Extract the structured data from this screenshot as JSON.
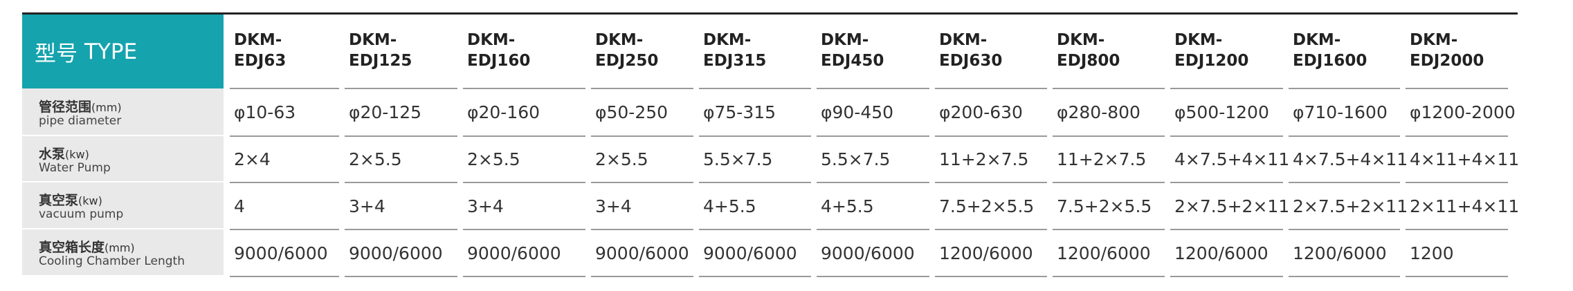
{
  "header": {
    "label_cn": "型号",
    "label_en": "TYPE",
    "models": [
      "DKM-EDJ63",
      "DKM-EDJ125",
      "DKM-EDJ160",
      "DKM-EDJ250",
      "DKM-EDJ315",
      "DKM-EDJ450",
      "DKM-EDJ630",
      "DKM-EDJ800",
      "DKM-EDJ1200",
      "DKM-EDJ1600",
      "DKM-EDJ2000"
    ]
  },
  "rows": [
    {
      "label_cn": "管径范围",
      "unit": "(mm)",
      "label_en": "pipe diameter",
      "values": [
        "φ10-63",
        "φ20-125",
        "φ20-160",
        "φ50-250",
        "φ75-315",
        "φ90-450",
        "φ200-630",
        "φ280-800",
        "φ500-1200",
        "φ710-1600",
        "φ1200-2000"
      ]
    },
    {
      "label_cn": "水泵",
      "unit": "(kw)",
      "label_en": "Water Pump",
      "values": [
        "2×4",
        "2×5.5",
        "2×5.5",
        "2×5.5",
        "5.5×7.5",
        "5.5×7.5",
        "11+2×7.5",
        "11+2×7.5",
        "4×7.5+4×11",
        "4×7.5+4×11",
        "4×11+4×11"
      ]
    },
    {
      "label_cn": "真空泵",
      "unit": "(kw)",
      "label_en": "vacuum pump",
      "values": [
        "4",
        "3+4",
        "3+4",
        "3+4",
        "4+5.5",
        "4+5.5",
        "7.5+2×5.5",
        "7.5+2×5.5",
        "2×7.5+2×11",
        "2×7.5+2×11",
        "2×11+4×11"
      ]
    },
    {
      "label_cn": "真空箱长度",
      "unit": "(mm)",
      "label_en": "Cooling Chamber Length",
      "values": [
        "9000/6000",
        "9000/6000",
        "9000/6000",
        "9000/6000",
        "9000/6000",
        "9000/6000",
        "1200/6000",
        "1200/6000",
        "1200/6000",
        "1200/6000",
        "1200"
      ]
    }
  ]
}
